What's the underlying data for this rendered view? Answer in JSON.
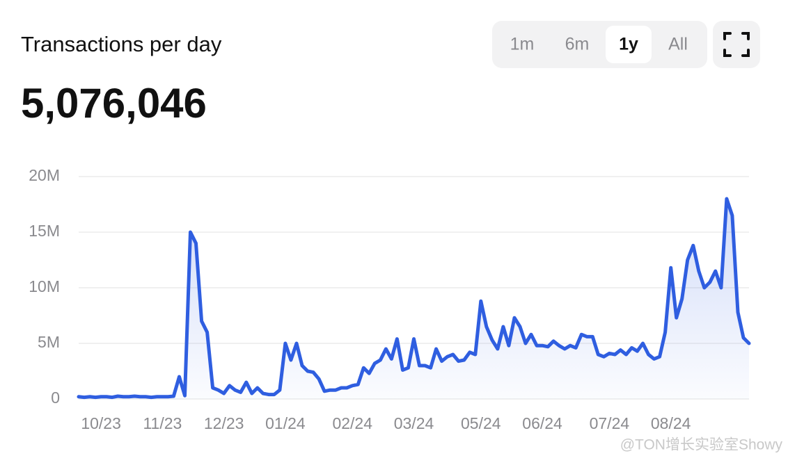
{
  "header": {
    "title": "Transactions per day",
    "value": "5,076,046",
    "ranges": [
      "1m",
      "6m",
      "1y",
      "All"
    ],
    "selected_range": "1y"
  },
  "watermark": "@TON增长实验室Showy",
  "chart_data": {
    "type": "area",
    "color": "#2f5ee0",
    "grid": true,
    "categories": [
      null,
      null,
      null,
      null,
      "10/23",
      null,
      null,
      null,
      null,
      null,
      null,
      null,
      null,
      null,
      null,
      "11/23",
      null,
      null,
      null,
      null,
      null,
      null,
      null,
      null,
      null,
      null,
      "12/23",
      null,
      null,
      null,
      null,
      null,
      null,
      null,
      null,
      null,
      null,
      "01/24",
      null,
      null,
      null,
      null,
      null,
      null,
      null,
      null,
      null,
      null,
      null,
      "02/24",
      null,
      null,
      null,
      null,
      null,
      null,
      null,
      null,
      null,
      null,
      "03/24",
      null,
      null,
      null,
      null,
      null,
      null,
      null,
      null,
      null,
      null,
      null,
      "05/24",
      null,
      null,
      null,
      null,
      null,
      null,
      null,
      null,
      null,
      null,
      "06/24",
      null,
      null,
      null,
      null,
      null,
      null,
      null,
      null,
      null,
      null,
      null,
      "07/24",
      null,
      null,
      null,
      null,
      null,
      null,
      null,
      null,
      null,
      null,
      "08/24",
      null,
      null,
      null,
      null,
      null,
      null,
      null,
      null,
      null,
      null,
      null,
      null,
      null,
      null
    ],
    "values": [
      200000,
      150000,
      200000,
      150000,
      200000,
      200000,
      150000,
      250000,
      200000,
      200000,
      250000,
      200000,
      200000,
      150000,
      200000,
      200000,
      200000,
      250000,
      2000000,
      300000,
      15000000,
      14000000,
      7000000,
      6000000,
      1000000,
      800000,
      500000,
      1200000,
      800000,
      600000,
      1500000,
      500000,
      1000000,
      500000,
      400000,
      400000,
      800000,
      5000000,
      3500000,
      5000000,
      3000000,
      2500000,
      2400000,
      1800000,
      700000,
      800000,
      800000,
      1000000,
      1000000,
      1200000,
      1300000,
      2800000,
      2300000,
      3200000,
      3500000,
      4500000,
      3600000,
      5400000,
      2600000,
      2800000,
      5400000,
      3000000,
      3000000,
      2800000,
      4500000,
      3400000,
      3800000,
      4000000,
      3400000,
      3500000,
      4200000,
      4000000,
      8800000,
      6500000,
      5300000,
      4500000,
      6500000,
      4800000,
      7300000,
      6500000,
      5000000,
      5800000,
      4800000,
      4800000,
      4700000,
      5200000,
      4800000,
      4500000,
      4800000,
      4600000,
      5800000,
      5600000,
      5600000,
      4000000,
      3800000,
      4100000,
      4000000,
      4400000,
      4000000,
      4600000,
      4300000,
      5000000,
      4000000,
      3600000,
      3800000,
      6000000,
      11800000,
      7300000,
      9000000,
      12500000,
      13800000,
      11500000,
      10000000,
      10500000,
      11500000,
      10000000,
      18000000,
      16500000,
      7800000,
      5500000,
      5000000
    ],
    "ylim": [
      0,
      20000000
    ],
    "yticks": [
      0,
      {
        "value": 5000000,
        "label": "5M"
      },
      {
        "value": 10000000,
        "label": "10M"
      },
      {
        "value": 15000000,
        "label": "15M"
      },
      {
        "value": 20000000,
        "label": "20M"
      }
    ]
  }
}
